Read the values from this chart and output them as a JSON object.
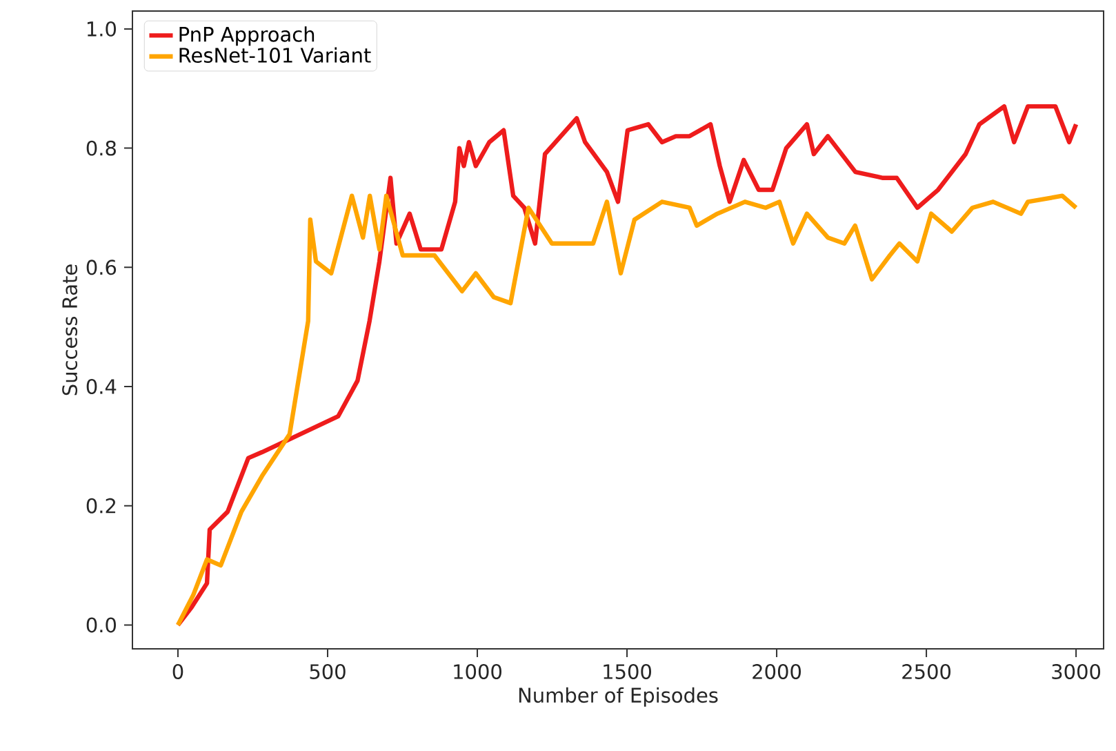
{
  "chart_data": {
    "type": "line",
    "xlabel": "Number of Episodes",
    "ylabel": "Success Rate",
    "xlim": [
      -152,
      3092
    ],
    "ylim": [
      -0.04,
      1.03
    ],
    "xticks": [
      0,
      500,
      1000,
      1500,
      2000,
      2500,
      3000
    ],
    "yticks": [
      {
        "value": 0,
        "label": "0.0"
      },
      {
        "value": 0.2,
        "label": "0.2"
      },
      {
        "value": 0.4,
        "label": "0.4"
      },
      {
        "value": 0.6,
        "label": "0.6"
      },
      {
        "value": 0.8,
        "label": "0.8"
      },
      {
        "value": 1,
        "label": "1.0"
      }
    ],
    "legend": "top left",
    "grid": false,
    "marker": "none",
    "line_style": "solid",
    "series": [
      {
        "name": "PnP Approach",
        "color": "#ee1c1c",
        "x": [
          0,
          46,
          97,
          106,
          166,
          235,
          281,
          535,
          600,
          640,
          673,
          710,
          730,
          774,
          811,
          880,
          926,
          940,
          955,
          972,
          995,
          1040,
          1088,
          1120,
          1157,
          1193,
          1226,
          1332,
          1360,
          1433,
          1470,
          1502,
          1571,
          1617,
          1663,
          1709,
          1779,
          1810,
          1843,
          1890,
          1940,
          1986,
          2032,
          2101,
          2124,
          2171,
          2263,
          2355,
          2401,
          2470,
          2539,
          2631,
          2677,
          2760,
          2793,
          2839,
          2931,
          2977,
          3000
        ],
        "values": [
          0.0,
          0.03,
          0.07,
          0.16,
          0.19,
          0.28,
          0.29,
          0.35,
          0.41,
          0.51,
          0.61,
          0.75,
          0.64,
          0.69,
          0.63,
          0.63,
          0.71,
          0.8,
          0.77,
          0.81,
          0.77,
          0.81,
          0.83,
          0.72,
          0.7,
          0.64,
          0.79,
          0.85,
          0.81,
          0.76,
          0.71,
          0.83,
          0.84,
          0.81,
          0.82,
          0.82,
          0.84,
          0.77,
          0.71,
          0.78,
          0.73,
          0.73,
          0.8,
          0.84,
          0.79,
          0.82,
          0.76,
          0.75,
          0.75,
          0.7,
          0.73,
          0.79,
          0.84,
          0.87,
          0.81,
          0.87,
          0.87,
          0.81,
          0.84
        ]
      },
      {
        "name": "ResNet-101 Variant",
        "color": "#ffa500",
        "x": [
          0,
          51,
          97,
          143,
          212,
          281,
          373,
          435,
          442,
          461,
          512,
          581,
          618,
          641,
          673,
          696,
          751,
          857,
          949,
          995,
          1055,
          1111,
          1171,
          1249,
          1387,
          1433,
          1479,
          1525,
          1617,
          1709,
          1733,
          1802,
          1894,
          1963,
          2009,
          2055,
          2101,
          2171,
          2226,
          2262,
          2318,
          2378,
          2410,
          2470,
          2516,
          2585,
          2654,
          2723,
          2816,
          2839,
          2954,
          3000
        ],
        "values": [
          0.0,
          0.05,
          0.11,
          0.1,
          0.19,
          0.25,
          0.32,
          0.51,
          0.68,
          0.61,
          0.59,
          0.72,
          0.65,
          0.72,
          0.63,
          0.72,
          0.62,
          0.62,
          0.56,
          0.59,
          0.55,
          0.54,
          0.7,
          0.64,
          0.64,
          0.71,
          0.59,
          0.68,
          0.71,
          0.7,
          0.67,
          0.69,
          0.71,
          0.7,
          0.71,
          0.64,
          0.69,
          0.65,
          0.64,
          0.67,
          0.58,
          0.62,
          0.64,
          0.61,
          0.69,
          0.66,
          0.7,
          0.71,
          0.69,
          0.71,
          0.72,
          0.7
        ]
      }
    ]
  }
}
